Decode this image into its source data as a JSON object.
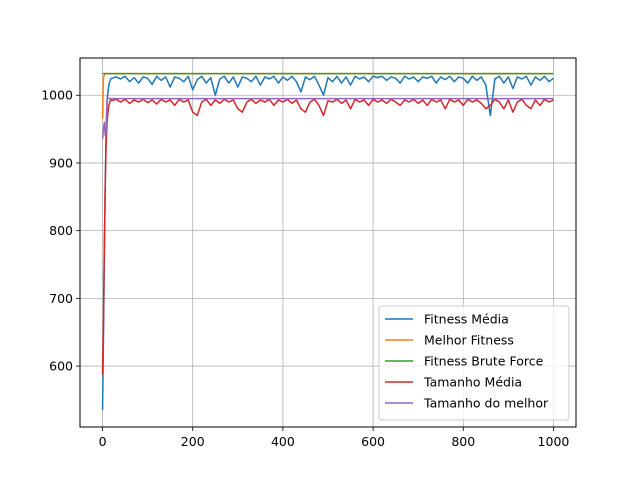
{
  "chart_data": {
    "type": "line",
    "title": "",
    "xlabel": "",
    "ylabel": "",
    "xlim": [
      -50,
      1050
    ],
    "ylim": [
      510,
      1055
    ],
    "x_ticks": [
      0,
      200,
      400,
      600,
      800,
      1000
    ],
    "y_ticks": [
      600,
      700,
      800,
      900,
      1000
    ],
    "grid": true,
    "legend_position": "lower-right",
    "series": [
      {
        "name": "Fitness Média",
        "color": "#1f77b4",
        "points": [
          [
            0,
            535
          ],
          [
            2,
            640
          ],
          [
            4,
            760
          ],
          [
            6,
            870
          ],
          [
            8,
            950
          ],
          [
            10,
            990
          ],
          [
            12,
            1005
          ],
          [
            14,
            1015
          ],
          [
            16,
            1020
          ],
          [
            18,
            1024
          ],
          [
            20,
            1025
          ],
          [
            30,
            1027
          ],
          [
            40,
            1024
          ],
          [
            50,
            1028
          ],
          [
            60,
            1020
          ],
          [
            70,
            1026
          ],
          [
            80,
            1018
          ],
          [
            90,
            1027
          ],
          [
            100,
            1025
          ],
          [
            110,
            1016
          ],
          [
            120,
            1028
          ],
          [
            130,
            1022
          ],
          [
            140,
            1027
          ],
          [
            150,
            1012
          ],
          [
            160,
            1027
          ],
          [
            170,
            1025
          ],
          [
            180,
            1020
          ],
          [
            190,
            1028
          ],
          [
            200,
            1008
          ],
          [
            210,
            1023
          ],
          [
            220,
            1028
          ],
          [
            230,
            1018
          ],
          [
            240,
            1026
          ],
          [
            250,
            1000
          ],
          [
            260,
            1024
          ],
          [
            270,
            1028
          ],
          [
            280,
            1018
          ],
          [
            290,
            1027
          ],
          [
            300,
            1012
          ],
          [
            310,
            1027
          ],
          [
            320,
            1025
          ],
          [
            330,
            1020
          ],
          [
            340,
            1028
          ],
          [
            350,
            1015
          ],
          [
            360,
            1027
          ],
          [
            370,
            1024
          ],
          [
            380,
            1028
          ],
          [
            390,
            1018
          ],
          [
            400,
            1027
          ],
          [
            410,
            1022
          ],
          [
            420,
            1028
          ],
          [
            430,
            1020
          ],
          [
            440,
            1005
          ],
          [
            450,
            1027
          ],
          [
            460,
            1023
          ],
          [
            470,
            1028
          ],
          [
            480,
            1015
          ],
          [
            490,
            1000
          ],
          [
            500,
            1026
          ],
          [
            510,
            1020
          ],
          [
            520,
            1028
          ],
          [
            530,
            1018
          ],
          [
            540,
            1027
          ],
          [
            550,
            1015
          ],
          [
            560,
            1028
          ],
          [
            570,
            1024
          ],
          [
            580,
            1027
          ],
          [
            590,
            1020
          ],
          [
            600,
            1028
          ],
          [
            610,
            1026
          ],
          [
            620,
            1028
          ],
          [
            630,
            1022
          ],
          [
            640,
            1027
          ],
          [
            650,
            1025
          ],
          [
            660,
            1018
          ],
          [
            670,
            1028
          ],
          [
            680,
            1024
          ],
          [
            690,
            1027
          ],
          [
            700,
            1020
          ],
          [
            710,
            1027
          ],
          [
            720,
            1025
          ],
          [
            730,
            1028
          ],
          [
            740,
            1018
          ],
          [
            750,
            1027
          ],
          [
            760,
            1023
          ],
          [
            770,
            1028
          ],
          [
            780,
            1020
          ],
          [
            790,
            1027
          ],
          [
            800,
            1025
          ],
          [
            810,
            1018
          ],
          [
            820,
            1028
          ],
          [
            830,
            1022
          ],
          [
            840,
            1027
          ],
          [
            850,
            1015
          ],
          [
            860,
            970
          ],
          [
            870,
            1024
          ],
          [
            880,
            1028
          ],
          [
            890,
            1018
          ],
          [
            900,
            1027
          ],
          [
            910,
            1010
          ],
          [
            920,
            1027
          ],
          [
            930,
            1024
          ],
          [
            940,
            1028
          ],
          [
            950,
            1015
          ],
          [
            960,
            1027
          ],
          [
            970,
            1022
          ],
          [
            980,
            1028
          ],
          [
            990,
            1020
          ],
          [
            1000,
            1025
          ]
        ]
      },
      {
        "name": "Melhor Fitness",
        "color": "#ff7f0e",
        "points": [
          [
            0,
            965
          ],
          [
            2,
            1025
          ],
          [
            4,
            1030
          ],
          [
            6,
            1032
          ],
          [
            1000,
            1032
          ]
        ]
      },
      {
        "name": "Fitness Brute Force",
        "color": "#2ca02c",
        "points": [
          [
            0,
            1032
          ],
          [
            1000,
            1032
          ]
        ]
      },
      {
        "name": " Tamanho Média",
        "color": "#d62728",
        "points": [
          [
            0,
            588
          ],
          [
            2,
            670
          ],
          [
            4,
            780
          ],
          [
            6,
            870
          ],
          [
            8,
            930
          ],
          [
            10,
            960
          ],
          [
            12,
            975
          ],
          [
            14,
            985
          ],
          [
            16,
            990
          ],
          [
            18,
            993
          ],
          [
            20,
            992
          ],
          [
            30,
            994
          ],
          [
            40,
            990
          ],
          [
            50,
            994
          ],
          [
            60,
            988
          ],
          [
            70,
            993
          ],
          [
            80,
            990
          ],
          [
            90,
            994
          ],
          [
            100,
            989
          ],
          [
            110,
            993
          ],
          [
            120,
            987
          ],
          [
            130,
            994
          ],
          [
            140,
            990
          ],
          [
            150,
            993
          ],
          [
            160,
            985
          ],
          [
            170,
            994
          ],
          [
            180,
            990
          ],
          [
            190,
            993
          ],
          [
            200,
            975
          ],
          [
            210,
            970
          ],
          [
            220,
            990
          ],
          [
            230,
            994
          ],
          [
            240,
            985
          ],
          [
            250,
            993
          ],
          [
            260,
            988
          ],
          [
            270,
            994
          ],
          [
            280,
            990
          ],
          [
            290,
            993
          ],
          [
            300,
            980
          ],
          [
            310,
            975
          ],
          [
            320,
            990
          ],
          [
            330,
            994
          ],
          [
            340,
            988
          ],
          [
            350,
            993
          ],
          [
            360,
            990
          ],
          [
            370,
            994
          ],
          [
            380,
            985
          ],
          [
            390,
            993
          ],
          [
            400,
            990
          ],
          [
            410,
            994
          ],
          [
            420,
            988
          ],
          [
            430,
            993
          ],
          [
            440,
            980
          ],
          [
            450,
            975
          ],
          [
            460,
            990
          ],
          [
            470,
            994
          ],
          [
            480,
            985
          ],
          [
            490,
            970
          ],
          [
            500,
            992
          ],
          [
            510,
            990
          ],
          [
            520,
            994
          ],
          [
            530,
            988
          ],
          [
            540,
            993
          ],
          [
            550,
            980
          ],
          [
            560,
            994
          ],
          [
            570,
            990
          ],
          [
            580,
            993
          ],
          [
            590,
            985
          ],
          [
            600,
            994
          ],
          [
            610,
            990
          ],
          [
            620,
            993
          ],
          [
            630,
            988
          ],
          [
            640,
            994
          ],
          [
            650,
            990
          ],
          [
            660,
            985
          ],
          [
            670,
            993
          ],
          [
            680,
            990
          ],
          [
            690,
            994
          ],
          [
            700,
            988
          ],
          [
            710,
            993
          ],
          [
            720,
            985
          ],
          [
            730,
            994
          ],
          [
            740,
            990
          ],
          [
            750,
            993
          ],
          [
            760,
            980
          ],
          [
            770,
            994
          ],
          [
            780,
            990
          ],
          [
            790,
            993
          ],
          [
            800,
            985
          ],
          [
            810,
            994
          ],
          [
            820,
            990
          ],
          [
            830,
            993
          ],
          [
            840,
            988
          ],
          [
            850,
            980
          ],
          [
            860,
            985
          ],
          [
            870,
            994
          ],
          [
            880,
            990
          ],
          [
            890,
            980
          ],
          [
            900,
            993
          ],
          [
            910,
            975
          ],
          [
            920,
            990
          ],
          [
            930,
            994
          ],
          [
            940,
            985
          ],
          [
            950,
            980
          ],
          [
            960,
            993
          ],
          [
            970,
            985
          ],
          [
            980,
            994
          ],
          [
            990,
            990
          ],
          [
            1000,
            993
          ]
        ]
      },
      {
        "name": "Tamanho do melhor",
        "color": "#9467bd",
        "points": [
          [
            0,
            935
          ],
          [
            2,
            950
          ],
          [
            4,
            960
          ],
          [
            6,
            940
          ],
          [
            8,
            945
          ],
          [
            10,
            995
          ],
          [
            1000,
            995
          ]
        ]
      }
    ]
  }
}
